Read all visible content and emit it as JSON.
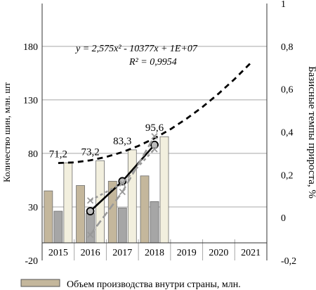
{
  "chart_data": {
    "type": "bar",
    "categories": [
      "2015",
      "2016",
      "2017",
      "2018",
      "2019",
      "2020",
      "2021"
    ],
    "ylabel": "Количество шин, млн. шт",
    "y2label": "Базисные темпы прироста, %",
    "ylim": [
      -20,
      220
    ],
    "y_ticks": [
      -20,
      30,
      80,
      130,
      180
    ],
    "y2lim": [
      -0.2,
      1.0
    ],
    "y2_ticks": [
      -0.2,
      0,
      0.2,
      0.4,
      0.6,
      0.8,
      1
    ],
    "grid": "horizontal",
    "legend_position": "bottom",
    "series": [
      {
        "name": "Объем производства внутри страны, млн.",
        "kind": "bar",
        "axis": "left",
        "color": "#c4b79c",
        "values": [
          45,
          50,
          54,
          59,
          null,
          null,
          null
        ]
      },
      {
        "kind": "bar",
        "axis": "left",
        "color": "#a6a6a6",
        "values": [
          26,
          24,
          29,
          35,
          null,
          null,
          null
        ]
      },
      {
        "kind": "bar",
        "axis": "left",
        "color": "#f2efde",
        "values": [
          71.2,
          73.2,
          83.3,
          95.6,
          null,
          null,
          null
        ],
        "data_labels": [
          "71,2",
          "73,2",
          "83,3",
          "95,6"
        ]
      },
      {
        "kind": "line",
        "axis": "right",
        "color": "#000000",
        "marker": "circle",
        "values": [
          null,
          0.03,
          0.17,
          0.34,
          null,
          null,
          null
        ]
      },
      {
        "kind": "line",
        "axis": "right",
        "color": "#999999",
        "marker": "x",
        "values": [
          null,
          -0.08,
          0.12,
          0.38,
          null,
          null,
          null
        ]
      },
      {
        "kind": "line",
        "axis": "right",
        "color": "#999999",
        "marker": "x",
        "values": [
          null,
          0.08,
          0.16,
          0.32,
          null,
          null,
          null
        ]
      }
    ],
    "trendline": {
      "equation": "y = 2,575x² - 10377x + 1E+07",
      "r2": "R² = 0,9954",
      "x": [
        2015,
        2015.5,
        2016,
        2016.5,
        2017,
        2017.5,
        2018,
        2018.5,
        2019,
        2019.5,
        2020,
        2020.5,
        2021
      ],
      "y": [
        71,
        71.6,
        73.5,
        76.7,
        81.2,
        87,
        94.1,
        102.6,
        112.4,
        123.5,
        135.9,
        149.6,
        164.6
      ]
    }
  }
}
